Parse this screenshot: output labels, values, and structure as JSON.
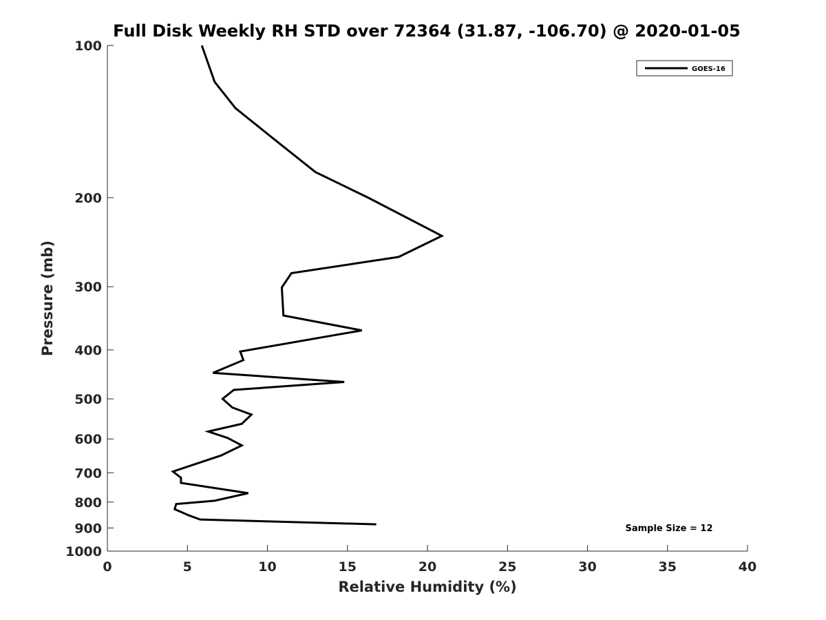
{
  "chart_data": {
    "type": "line",
    "title": "Full Disk Weekly RH STD over 72364 (31.87, -106.70) @ 2020-01-05",
    "xlabel": "Relative Humidity (%)",
    "ylabel": "Pressure (mb)",
    "xlim": [
      0,
      40
    ],
    "ylim": [
      100,
      1000
    ],
    "y_scale": "log",
    "y_reversed": true,
    "grid": false,
    "x_ticks": [
      "0",
      "5",
      "10",
      "15",
      "20",
      "25",
      "30",
      "35",
      "40"
    ],
    "x_tick_values": [
      0,
      5,
      10,
      15,
      20,
      25,
      30,
      35,
      40
    ],
    "y_ticks": [
      "100",
      "200",
      "300",
      "400",
      "500",
      "600",
      "700",
      "800",
      "900",
      "1000"
    ],
    "y_tick_values": [
      100,
      200,
      300,
      400,
      500,
      600,
      700,
      800,
      900,
      1000
    ],
    "legend_position": "top-right",
    "annotation": "Sample Size = 12",
    "series": [
      {
        "name": "GOES-16",
        "color": "#000000",
        "points": [
          {
            "x": 5.9,
            "p": 100
          },
          {
            "x": 6.7,
            "p": 118
          },
          {
            "x": 8.0,
            "p": 133
          },
          {
            "x": 10.5,
            "p": 154
          },
          {
            "x": 13.0,
            "p": 178
          },
          {
            "x": 16.3,
            "p": 200
          },
          {
            "x": 20.9,
            "p": 238
          },
          {
            "x": 18.2,
            "p": 262
          },
          {
            "x": 11.5,
            "p": 282
          },
          {
            "x": 10.9,
            "p": 301
          },
          {
            "x": 11.0,
            "p": 342
          },
          {
            "x": 15.9,
            "p": 366
          },
          {
            "x": 8.3,
            "p": 403
          },
          {
            "x": 8.5,
            "p": 419
          },
          {
            "x": 6.6,
            "p": 444
          },
          {
            "x": 14.8,
            "p": 463
          },
          {
            "x": 7.9,
            "p": 480
          },
          {
            "x": 7.2,
            "p": 500
          },
          {
            "x": 7.8,
            "p": 520
          },
          {
            "x": 9.0,
            "p": 537
          },
          {
            "x": 8.4,
            "p": 560
          },
          {
            "x": 6.3,
            "p": 580
          },
          {
            "x": 7.5,
            "p": 597
          },
          {
            "x": 8.4,
            "p": 618
          },
          {
            "x": 7.1,
            "p": 647
          },
          {
            "x": 4.1,
            "p": 696
          },
          {
            "x": 4.6,
            "p": 716
          },
          {
            "x": 4.6,
            "p": 733
          },
          {
            "x": 8.8,
            "p": 768
          },
          {
            "x": 6.7,
            "p": 795
          },
          {
            "x": 4.3,
            "p": 807
          },
          {
            "x": 4.2,
            "p": 826
          },
          {
            "x": 5.1,
            "p": 850
          },
          {
            "x": 5.8,
            "p": 866
          },
          {
            "x": 16.8,
            "p": 885
          }
        ]
      }
    ]
  }
}
